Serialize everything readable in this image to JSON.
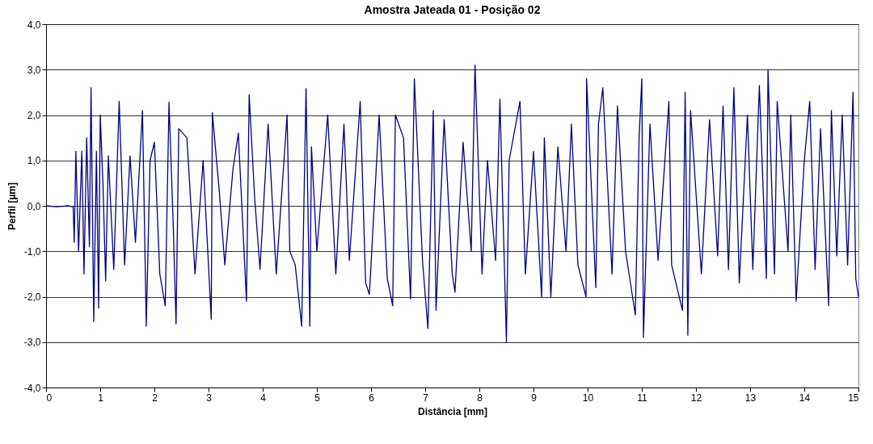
{
  "chart_data": {
    "type": "line",
    "title": "Amostra Jateada 01 - Posição 02",
    "xlabel": "Distância [mm]",
    "ylabel": "Perfil [µm]",
    "x": [
      0,
      0.2,
      0.4,
      0.5,
      0.52,
      0.55,
      0.6,
      0.66,
      0.7,
      0.75,
      0.8,
      0.83,
      0.88,
      0.93,
      0.97,
      1.0,
      1.05,
      1.1,
      1.15,
      1.25,
      1.35,
      1.45,
      1.55,
      1.65,
      1.78,
      1.85,
      1.92,
      2.0,
      2.1,
      2.2,
      2.27,
      2.35,
      2.4,
      2.45,
      2.6,
      2.75,
      2.9,
      3.05,
      3.07,
      3.2,
      3.3,
      3.45,
      3.55,
      3.7,
      3.75,
      3.85,
      3.95,
      4.1,
      4.25,
      4.45,
      4.5,
      4.6,
      4.72,
      4.8,
      4.87,
      4.9,
      5.0,
      5.2,
      5.35,
      5.5,
      5.6,
      5.8,
      5.9,
      5.97,
      6.15,
      6.3,
      6.4,
      6.45,
      6.6,
      6.73,
      6.8,
      6.95,
      7.05,
      7.15,
      7.2,
      7.35,
      7.5,
      7.55,
      7.7,
      7.85,
      7.92,
      8.05,
      8.15,
      8.3,
      8.38,
      8.5,
      8.55,
      8.75,
      8.85,
      9.0,
      9.15,
      9.2,
      9.32,
      9.45,
      9.6,
      9.7,
      9.82,
      9.97,
      9.98,
      10.15,
      10.2,
      10.28,
      10.45,
      10.55,
      10.7,
      10.88,
      10.95,
      11.0,
      11.03,
      11.15,
      11.3,
      11.5,
      11.55,
      11.75,
      11.8,
      11.85,
      11.9,
      12.1,
      12.25,
      12.4,
      12.5,
      12.6,
      12.7,
      12.8,
      12.95,
      13.05,
      13.17,
      13.3,
      13.33,
      13.45,
      13.5,
      13.7,
      13.75,
      13.85,
      14.0,
      14.1,
      14.2,
      14.3,
      14.45,
      14.5,
      14.6,
      14.7,
      14.8,
      14.9,
      14.95,
      15.0
    ],
    "series": [
      {
        "color": "#000080",
        "values": [
          0,
          -0.02,
          0,
          -0.02,
          -0.8,
          1.2,
          -1.0,
          1.2,
          -1.5,
          1.5,
          -0.9,
          2.6,
          -2.55,
          1.2,
          -2.25,
          2.0,
          0.5,
          -1.65,
          1.1,
          -1.4,
          2.3,
          -1.3,
          1.1,
          -0.8,
          2.1,
          -2.65,
          1.0,
          1.4,
          -1.5,
          -2.2,
          2.28,
          -0.5,
          -2.6,
          1.7,
          1.5,
          -1.5,
          1.0,
          -2.5,
          2.05,
          0.3,
          -1.3,
          0.8,
          1.6,
          -2.1,
          2.45,
          0.2,
          -1.4,
          1.8,
          -1.5,
          2.0,
          -1.0,
          -1.3,
          -2.65,
          2.58,
          -2.65,
          1.3,
          -1.0,
          2.0,
          -1.5,
          1.8,
          -1.2,
          2.3,
          -1.7,
          -1.95,
          2.0,
          -1.6,
          -2.2,
          2.0,
          1.5,
          -2.05,
          2.8,
          -1.2,
          -2.7,
          2.1,
          -2.3,
          1.9,
          -1.5,
          -1.9,
          1.4,
          -1.0,
          3.1,
          -1.5,
          1.0,
          -1.2,
          2.35,
          -3.0,
          1.0,
          2.3,
          -1.5,
          1.2,
          -2.0,
          1.5,
          -2.0,
          1.3,
          -1.0,
          1.8,
          -1.3,
          -2.0,
          2.8,
          -1.8,
          1.8,
          2.6,
          -1.5,
          2.2,
          -1.0,
          -2.4,
          1.5,
          2.8,
          -2.9,
          1.8,
          -1.2,
          2.3,
          -1.3,
          -2.3,
          2.5,
          -2.85,
          2.1,
          -1.5,
          1.9,
          -1.1,
          2.2,
          -1.4,
          2.6,
          -1.7,
          2.0,
          -1.4,
          2.65,
          -1.6,
          3.0,
          -1.5,
          2.3,
          -1.0,
          2.0,
          -2.1,
          1.0,
          2.3,
          -1.4,
          1.7,
          -2.2,
          2.1,
          -1.1,
          2.0,
          -1.3,
          2.5,
          -1.6,
          -2.0
        ]
      }
    ],
    "xlim": [
      0,
      15
    ],
    "xticks": [
      0,
      1,
      2,
      3,
      4,
      5,
      6,
      7,
      8,
      9,
      10,
      11,
      12,
      13,
      14,
      15
    ],
    "ylim": [
      -4,
      4
    ],
    "yticks": [
      {
        "value": -4,
        "label": "-4,0"
      },
      {
        "value": -3,
        "label": "-3,0"
      },
      {
        "value": -2,
        "label": "-2,0"
      },
      {
        "value": -1,
        "label": "-1,0"
      },
      {
        "value": 0,
        "label": "0,0"
      },
      {
        "value": 1,
        "label": "1,0"
      },
      {
        "value": 2,
        "label": "2,0"
      },
      {
        "value": 3,
        "label": "3,0"
      },
      {
        "value": 4,
        "label": "4,0"
      }
    ],
    "grid": "y"
  }
}
